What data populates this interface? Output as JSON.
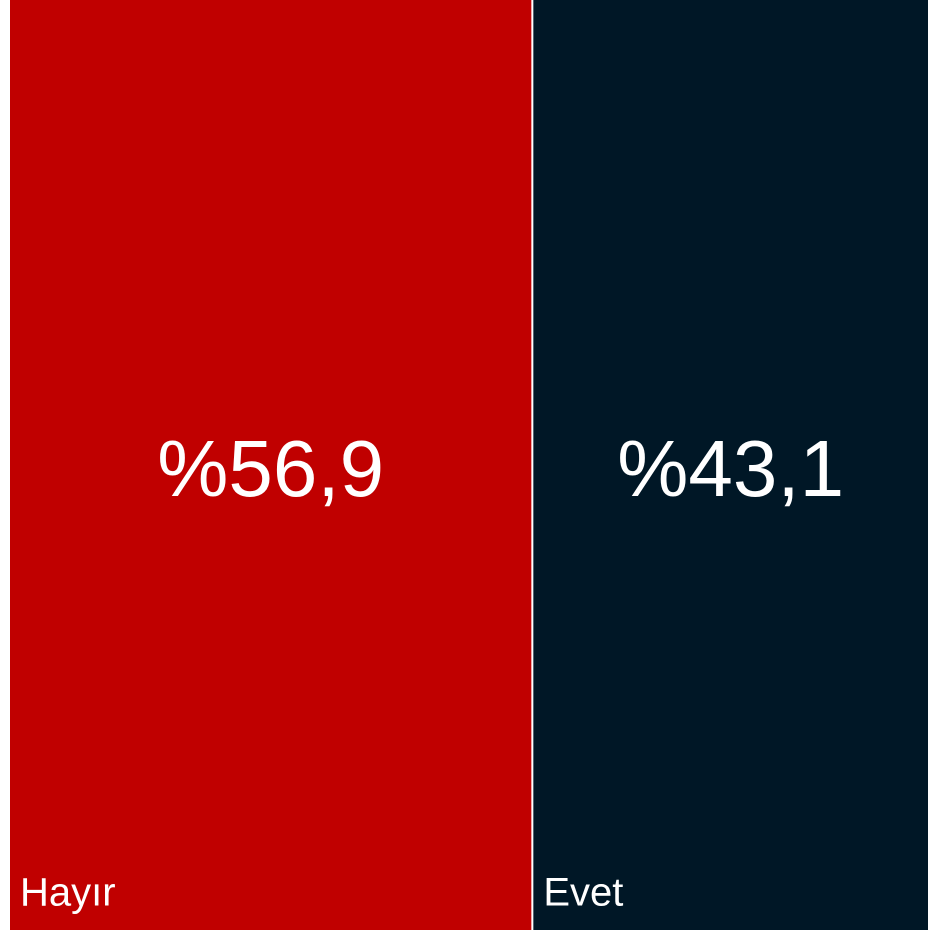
{
  "chart_data": {
    "type": "treemap",
    "categories": [
      "Hayır",
      "Evet"
    ],
    "values": [
      56.9,
      43.1
    ],
    "value_labels": [
      "%56,9",
      "%43,1"
    ],
    "colors": [
      "#c00000",
      "#001726"
    ]
  }
}
